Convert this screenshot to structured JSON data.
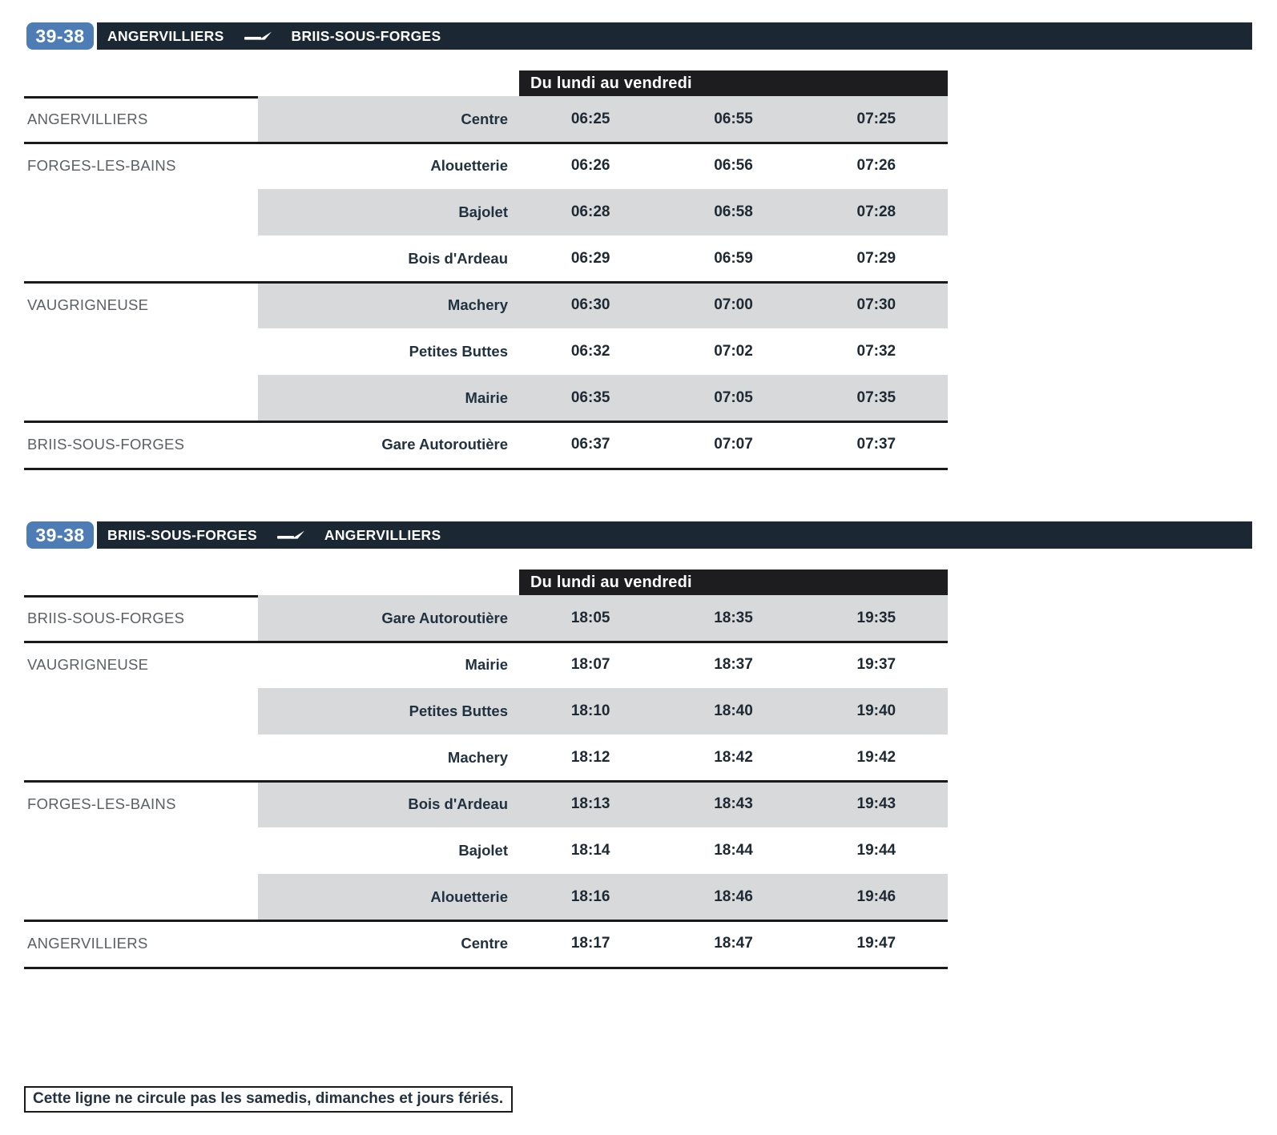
{
  "colors": {
    "badge_blue": "#4e7cb4",
    "header_bar": "#1b2834",
    "day_header_bg": "#1d1d1f",
    "row_stripe": "#d7d9db",
    "rule_black": "#1a1a1a"
  },
  "tables": [
    {
      "line": "39-38",
      "from": "ANGERVILLIERS",
      "to": "BRIIS-SOUS-FORGES",
      "day_header": "Du lundi au vendredi",
      "rows": [
        {
          "commune": "ANGERVILLIERS",
          "stop": "Centre",
          "times": [
            "06:25",
            "06:55",
            "07:25"
          ],
          "group_start": true
        },
        {
          "commune": "FORGES-LES-BAINS",
          "stop": "Alouetterie",
          "times": [
            "06:26",
            "06:56",
            "07:26"
          ],
          "group_start": true
        },
        {
          "commune": "",
          "stop": "Bajolet",
          "times": [
            "06:28",
            "06:58",
            "07:28"
          ],
          "group_start": false
        },
        {
          "commune": "",
          "stop": "Bois d'Ardeau",
          "times": [
            "06:29",
            "06:59",
            "07:29"
          ],
          "group_start": false
        },
        {
          "commune": "VAUGRIGNEUSE",
          "stop": "Machery",
          "times": [
            "06:30",
            "07:00",
            "07:30"
          ],
          "group_start": true
        },
        {
          "commune": "",
          "stop": "Petites Buttes",
          "times": [
            "06:32",
            "07:02",
            "07:32"
          ],
          "group_start": false
        },
        {
          "commune": "",
          "stop": "Mairie",
          "times": [
            "06:35",
            "07:05",
            "07:35"
          ],
          "group_start": false
        },
        {
          "commune": "BRIIS-SOUS-FORGES",
          "stop": "Gare Autoroutière",
          "times": [
            "06:37",
            "07:07",
            "07:37"
          ],
          "group_start": true
        }
      ]
    },
    {
      "line": "39-38",
      "from": "BRIIS-SOUS-FORGES",
      "to": "ANGERVILLIERS",
      "day_header": "Du lundi au vendredi",
      "rows": [
        {
          "commune": "BRIIS-SOUS-FORGES",
          "stop": "Gare Autoroutière",
          "times": [
            "18:05",
            "18:35",
            "19:35"
          ],
          "group_start": true
        },
        {
          "commune": "VAUGRIGNEUSE",
          "stop": "Mairie",
          "times": [
            "18:07",
            "18:37",
            "19:37"
          ],
          "group_start": true
        },
        {
          "commune": "",
          "stop": "Petites Buttes",
          "times": [
            "18:10",
            "18:40",
            "19:40"
          ],
          "group_start": false
        },
        {
          "commune": "",
          "stop": "Machery",
          "times": [
            "18:12",
            "18:42",
            "19:42"
          ],
          "group_start": false
        },
        {
          "commune": "FORGES-LES-BAINS",
          "stop": "Bois d'Ardeau",
          "times": [
            "18:13",
            "18:43",
            "19:43"
          ],
          "group_start": true
        },
        {
          "commune": "",
          "stop": "Bajolet",
          "times": [
            "18:14",
            "18:44",
            "19:44"
          ],
          "group_start": false
        },
        {
          "commune": "",
          "stop": "Alouetterie",
          "times": [
            "18:16",
            "18:46",
            "19:46"
          ],
          "group_start": false
        },
        {
          "commune": "ANGERVILLIERS",
          "stop": "Centre",
          "times": [
            "18:17",
            "18:47",
            "19:47"
          ],
          "group_start": true
        }
      ]
    }
  ],
  "footer_note": "Cette ligne ne circule pas les samedis, dimanches et jours fériés."
}
